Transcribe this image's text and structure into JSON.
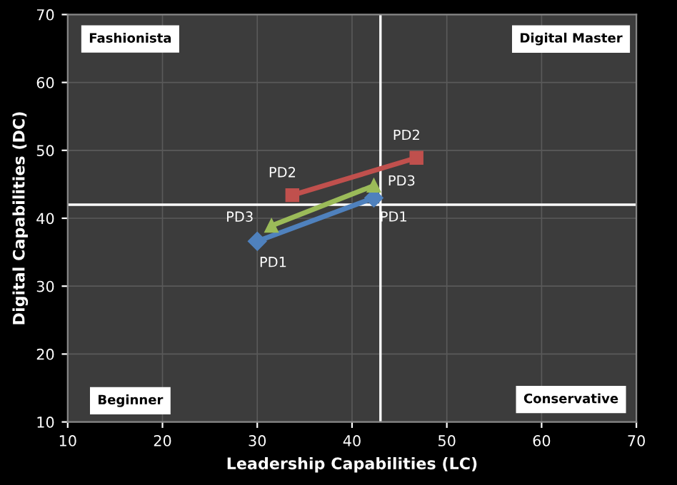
{
  "chart_data": {
    "type": "line",
    "xlabel": "Leadership Capabilities (LC)",
    "ylabel": "Digital Capabilities (DC)",
    "xlim": [
      10,
      70
    ],
    "xticks": [
      10,
      20,
      30,
      40,
      50,
      60,
      70
    ],
    "ylim": [
      10,
      70
    ],
    "yticks": [
      10,
      20,
      30,
      40,
      50,
      60,
      70
    ],
    "grid": true,
    "legend": false,
    "series": [
      {
        "name": "PD1",
        "color": "#4f81bd",
        "marker": "diamond",
        "x": [
          30.0,
          42.3
        ],
        "values": [
          36.6,
          43.0
        ]
      },
      {
        "name": "PD2",
        "color": "#c0504d",
        "marker": "square",
        "x": [
          33.7,
          46.8
        ],
        "values": [
          43.4,
          48.9
        ]
      },
      {
        "name": "PD3",
        "color": "#9bbb59",
        "marker": "triangle",
        "x": [
          31.5,
          42.3
        ],
        "values": [
          38.9,
          44.8
        ]
      }
    ],
    "ref_lines": [
      {
        "axis": "x",
        "value": 43,
        "color": "#ffffff"
      },
      {
        "axis": "y",
        "value": 42,
        "color": "#ffffff"
      }
    ],
    "annotations": [
      "Fashionista",
      "Digital Master",
      "Beginner",
      "Conservative"
    ]
  }
}
